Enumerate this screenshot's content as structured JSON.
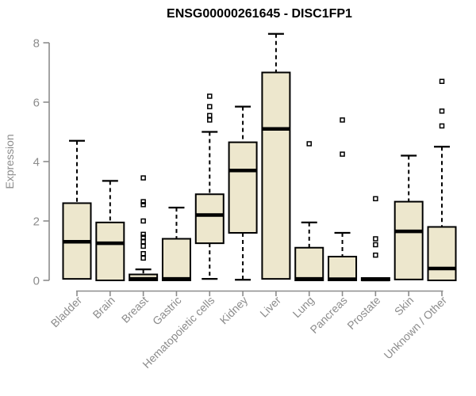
{
  "figure": {
    "title": "ENSG00000261645 - DISC1FP1"
  },
  "chart_data": {
    "type": "boxplot",
    "title": "ENSG00000261645 - DISC1FP1",
    "xlabel": "",
    "ylabel": "Expression",
    "ylim": [
      0,
      8
    ],
    "yticks": [
      0,
      2,
      4,
      6,
      8
    ],
    "grid": false,
    "legend": "none",
    "categories": [
      "Bladder",
      "Brain",
      "Breast",
      "Gastric",
      "Hematopoietic cells",
      "Kidney",
      "Liver",
      "Lung",
      "Pancreas",
      "Prostate",
      "Skin",
      "Unknown / Other"
    ],
    "series": [
      {
        "category": "Bladder",
        "whisker_low": 0.05,
        "q1": 0.05,
        "median": 1.3,
        "q3": 2.6,
        "whisker_high": 4.7,
        "outliers": []
      },
      {
        "category": "Brain",
        "whisker_low": 0.0,
        "q1": 0.0,
        "median": 1.25,
        "q3": 1.95,
        "whisker_high": 3.35,
        "outliers": []
      },
      {
        "category": "Breast",
        "whisker_low": 0.0,
        "q1": 0.0,
        "median": 0.05,
        "q3": 0.2,
        "whisker_high": 0.37,
        "outliers": [
          3.45,
          2.65,
          2.55,
          2.0,
          1.55,
          1.45,
          1.3,
          1.15,
          0.9,
          0.75
        ]
      },
      {
        "category": "Gastric",
        "whisker_low": 0.0,
        "q1": 0.0,
        "median": 0.05,
        "q3": 1.4,
        "whisker_high": 2.45,
        "outliers": []
      },
      {
        "category": "Hematopoietic cells",
        "whisker_low": 0.05,
        "q1": 1.25,
        "median": 2.2,
        "q3": 2.9,
        "whisker_high": 5.0,
        "outliers": [
          6.2,
          5.85,
          5.55,
          5.4
        ]
      },
      {
        "category": "Kidney",
        "whisker_low": 0.02,
        "q1": 1.6,
        "median": 3.7,
        "q3": 4.65,
        "whisker_high": 5.85,
        "outliers": []
      },
      {
        "category": "Liver",
        "whisker_low": 0.05,
        "q1": 0.05,
        "median": 5.1,
        "q3": 7.0,
        "whisker_high": 8.3,
        "outliers": []
      },
      {
        "category": "Lung",
        "whisker_low": 0.0,
        "q1": 0.0,
        "median": 0.05,
        "q3": 1.1,
        "whisker_high": 1.95,
        "outliers": [
          4.6
        ]
      },
      {
        "category": "Pancreas",
        "whisker_low": 0.0,
        "q1": 0.0,
        "median": 0.04,
        "q3": 0.8,
        "whisker_high": 1.6,
        "outliers": [
          5.4,
          4.25
        ]
      },
      {
        "category": "Prostate",
        "whisker_low": 0.0,
        "q1": 0.0,
        "median": 0.03,
        "q3": 0.08,
        "whisker_high": 0.08,
        "outliers": [
          2.75,
          1.4,
          1.2,
          0.85
        ]
      },
      {
        "category": "Skin",
        "whisker_low": 0.03,
        "q1": 0.03,
        "median": 1.65,
        "q3": 2.65,
        "whisker_high": 4.2,
        "outliers": []
      },
      {
        "category": "Unknown / Other",
        "whisker_low": 0.0,
        "q1": 0.0,
        "median": 0.4,
        "q3": 1.8,
        "whisker_high": 4.5,
        "outliers": [
          6.7,
          5.7,
          5.2
        ]
      }
    ],
    "colors": {
      "box_fill": "#EDE7CD",
      "box_stroke": "#000000",
      "median": "#000000",
      "whisker": "#000000",
      "outlier": "#000000",
      "axis": "#8C8C8C",
      "tick_label": "#8C8C8C",
      "title": "#000000",
      "background": "#FFFFFF"
    }
  }
}
